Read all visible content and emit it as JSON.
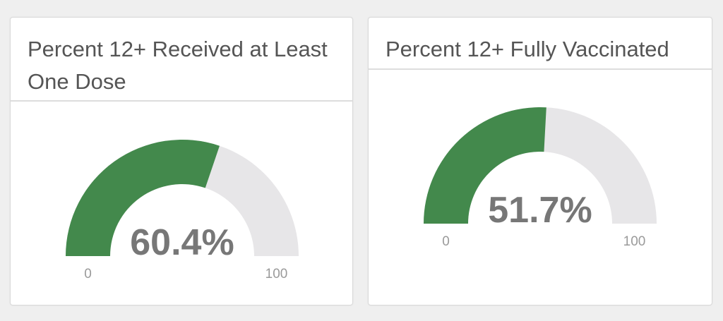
{
  "chart_data": [
    {
      "type": "gauge",
      "title": "Percent 12+ Received at Least One Dose",
      "value": 60.4,
      "value_label": "60.4%",
      "min": 0,
      "max": 100,
      "min_label": "0",
      "max_label": "100",
      "fill_color": "#43894c",
      "track_color": "#e7e6e8"
    },
    {
      "type": "gauge",
      "title": "Percent 12+ Fully Vaccinated",
      "value": 51.7,
      "value_label": "51.7%",
      "min": 0,
      "max": 100,
      "min_label": "0",
      "max_label": "100",
      "fill_color": "#43894c",
      "track_color": "#e7e6e8"
    }
  ]
}
